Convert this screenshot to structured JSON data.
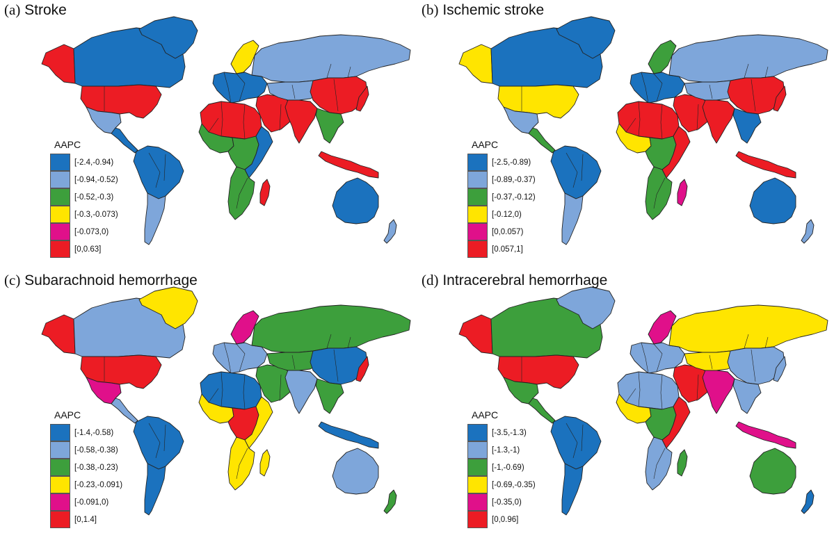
{
  "colors": {
    "c1": "#1b72be",
    "c2": "#7ea6da",
    "c3": "#3d9f3c",
    "c4": "#ffe500",
    "c5": "#e0108a",
    "c6": "#ec1c24"
  },
  "panels": [
    {
      "id": "a",
      "tag": "(a)",
      "title": "Stroke",
      "legend_title": "AAPC",
      "bins": [
        "[-2.4,-0.94)",
        "[-0.94,-0.52)",
        "[-0.52,-0.3)",
        "[-0.3,-0.073)",
        "[-0.073,0)",
        "[0,0.63]"
      ],
      "region_classes": {
        "alaska": 6,
        "canada": 1,
        "greenland": 1,
        "usa": 6,
        "mexico": 2,
        "central_america": 1,
        "south_america": 1,
        "south_america_south": 2,
        "scandinavia": 4,
        "europe": 1,
        "russia": 2,
        "middle_east": 6,
        "central_asia": 2,
        "china": 6,
        "india": 6,
        "southeast_asia": 3,
        "japan": 6,
        "indonesia": 6,
        "north_africa": 6,
        "west_africa": 3,
        "central_africa": 3,
        "east_africa": 1,
        "southern_africa": 3,
        "madagascar": 6,
        "australia": 1,
        "new_zealand": 2
      }
    },
    {
      "id": "b",
      "tag": "(b)",
      "title": "Ischemic stroke",
      "legend_title": "AAPC",
      "bins": [
        "[-2.5,-0.89)",
        "[-0.89,-0.37)",
        "[-0.37,-0.12)",
        "[-0.12,0)",
        "[0,0.057)",
        "[0.057,1]"
      ],
      "region_classes": {
        "alaska": 4,
        "canada": 1,
        "greenland": 1,
        "usa": 4,
        "mexico": 2,
        "central_america": 3,
        "south_america": 1,
        "south_america_south": 2,
        "scandinavia": 3,
        "europe": 1,
        "russia": 2,
        "middle_east": 6,
        "central_asia": 2,
        "china": 6,
        "india": 6,
        "southeast_asia": 1,
        "japan": 6,
        "indonesia": 6,
        "north_africa": 6,
        "west_africa": 4,
        "central_africa": 3,
        "east_africa": 6,
        "southern_africa": 3,
        "madagascar": 5,
        "australia": 1,
        "new_zealand": 2
      }
    },
    {
      "id": "c",
      "tag": "(c)",
      "title": "Subarachnoid hemorrhage",
      "legend_title": "AAPC",
      "bins": [
        "[-1.4,-0.58)",
        "[-0.58,-0.38)",
        "[-0.38,-0.23)",
        "[-0.23,-0.091)",
        "[-0.091,0)",
        "[0,1.4]"
      ],
      "region_classes": {
        "alaska": 6,
        "canada": 2,
        "greenland": 4,
        "usa": 6,
        "mexico": 5,
        "central_america": 2,
        "south_america": 1,
        "south_america_south": 1,
        "scandinavia": 5,
        "europe": 2,
        "russia": 3,
        "middle_east": 3,
        "central_asia": 3,
        "china": 1,
        "india": 2,
        "southeast_asia": 3,
        "japan": 6,
        "indonesia": 1,
        "north_africa": 1,
        "west_africa": 4,
        "central_africa": 6,
        "east_africa": 4,
        "southern_africa": 4,
        "madagascar": 4,
        "australia": 2,
        "new_zealand": 3
      }
    },
    {
      "id": "d",
      "tag": "(d)",
      "title": "Intracerebral hemorrhage",
      "legend_title": "AAPC",
      "bins": [
        "[-3.5,-1.3)",
        "[-1.3,-1)",
        "[-1,-0.69)",
        "[-0.69,-0.35)",
        "[-0.35,0)",
        "[0,0.96]"
      ],
      "region_classes": {
        "alaska": 6,
        "canada": 3,
        "greenland": 2,
        "usa": 6,
        "mexico": 3,
        "central_america": 3,
        "south_america": 1,
        "south_america_south": 1,
        "scandinavia": 5,
        "europe": 2,
        "russia": 4,
        "middle_east": 6,
        "central_asia": 4,
        "china": 2,
        "india": 5,
        "southeast_asia": 2,
        "japan": 2,
        "indonesia": 5,
        "north_africa": 2,
        "west_africa": 4,
        "central_africa": 3,
        "east_africa": 6,
        "southern_africa": 2,
        "madagascar": 3,
        "australia": 3,
        "new_zealand": 1
      }
    }
  ]
}
